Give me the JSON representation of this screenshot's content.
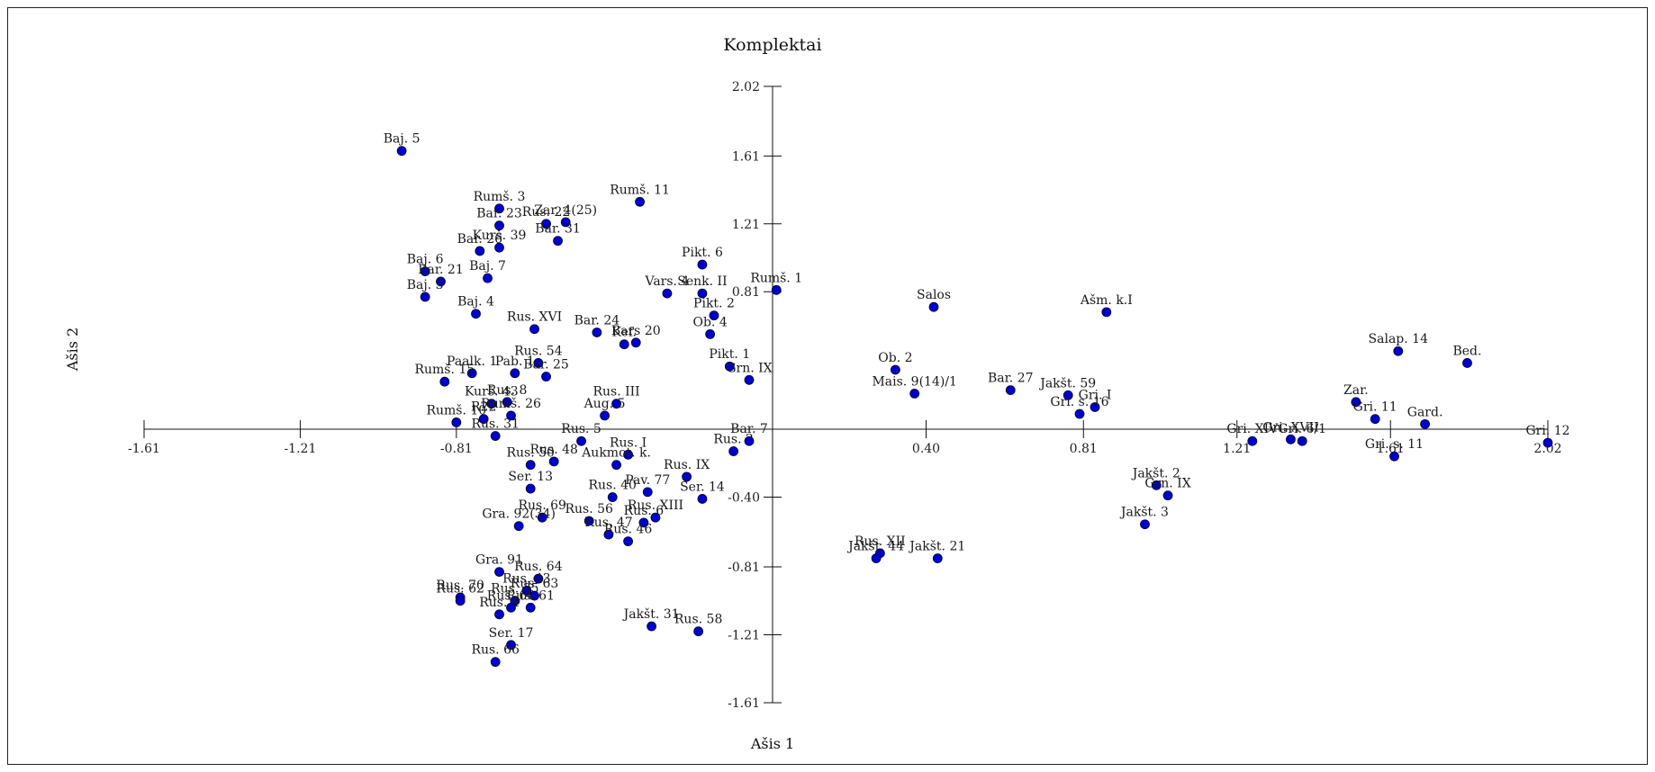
{
  "chart_data": {
    "type": "scatter",
    "title": "Komplektai",
    "xlabel": "Ašis 1",
    "ylabel": "Ašis 2",
    "xlim": [
      -1.61,
      2.02
    ],
    "ylim": [
      -1.61,
      2.02
    ],
    "xticks": [
      "-1.61",
      "-1.21",
      "-0.81",
      "0.40",
      "0.81",
      "1.21",
      "1.61",
      "2.02"
    ],
    "yticks": [
      "2.02",
      "1.61",
      "1.21",
      "0.81",
      "-0.40",
      "-0.81",
      "-1.21",
      "-1.61"
    ],
    "point_color": "#0000cc",
    "points": [
      {
        "label": "Baj. 5",
        "x": -0.95,
        "y": 1.64
      },
      {
        "label": "Rumš. 3",
        "x": -0.7,
        "y": 1.3
      },
      {
        "label": "Bar. 23",
        "x": -0.7,
        "y": 1.2
      },
      {
        "label": "Rus. 22",
        "x": -0.58,
        "y": 1.21
      },
      {
        "label": "Zar. 4(25)",
        "x": -0.53,
        "y": 1.22
      },
      {
        "label": "Bar. 31",
        "x": -0.55,
        "y": 1.11
      },
      {
        "label": "Rumš. 11",
        "x": -0.34,
        "y": 1.34
      },
      {
        "label": "Kurš. 39",
        "x": -0.7,
        "y": 1.07
      },
      {
        "label": "Bar. 26",
        "x": -0.75,
        "y": 1.05
      },
      {
        "label": "Baj. 6",
        "x": -0.89,
        "y": 0.93
      },
      {
        "label": "Bar. 21",
        "x": -0.85,
        "y": 0.87
      },
      {
        "label": "Baj. 7",
        "x": -0.73,
        "y": 0.89
      },
      {
        "label": "Baj. 3",
        "x": -0.89,
        "y": 0.78
      },
      {
        "label": "Baj. 4",
        "x": -0.76,
        "y": 0.68
      },
      {
        "label": "Pikt. 6",
        "x": -0.18,
        "y": 0.97
      },
      {
        "label": "Vars. 4",
        "x": -0.27,
        "y": 0.8
      },
      {
        "label": "Senk. II",
        "x": -0.18,
        "y": 0.8
      },
      {
        "label": "Rumš. 1",
        "x": 0.01,
        "y": 0.82
      },
      {
        "label": "Pikt. 2",
        "x": -0.15,
        "y": 0.67
      },
      {
        "label": "Ob. 4",
        "x": -0.16,
        "y": 0.56
      },
      {
        "label": "Rus. XVI",
        "x": -0.61,
        "y": 0.59
      },
      {
        "label": "Bar. 24",
        "x": -0.45,
        "y": 0.57
      },
      {
        "label": "Kef.",
        "x": -0.38,
        "y": 0.5
      },
      {
        "label": "Bars 20",
        "x": -0.35,
        "y": 0.51
      },
      {
        "label": "Pikt. 1",
        "x": -0.11,
        "y": 0.37
      },
      {
        "label": "Grn. IX",
        "x": -0.06,
        "y": 0.29
      },
      {
        "label": "Paalk. 1",
        "x": -0.77,
        "y": 0.33
      },
      {
        "label": "Pab. 1",
        "x": -0.66,
        "y": 0.33
      },
      {
        "label": "Rus. 54",
        "x": -0.6,
        "y": 0.39
      },
      {
        "label": "Bar. 25",
        "x": -0.58,
        "y": 0.31
      },
      {
        "label": "Rumš. 15",
        "x": -0.84,
        "y": 0.28
      },
      {
        "label": "Kurš. 43",
        "x": -0.72,
        "y": 0.15
      },
      {
        "label": "Rus. 8",
        "x": -0.68,
        "y": 0.16
      },
      {
        "label": "Rumš. 26",
        "x": -0.67,
        "y": 0.08
      },
      {
        "label": "Rumš. 10",
        "x": -0.81,
        "y": 0.04
      },
      {
        "label": "R22",
        "x": -0.74,
        "y": 0.06
      },
      {
        "label": "Rus. 31",
        "x": -0.71,
        "y": -0.04
      },
      {
        "label": "Rus. III",
        "x": -0.4,
        "y": 0.15
      },
      {
        "label": "Aug. 5",
        "x": -0.43,
        "y": 0.08
      },
      {
        "label": "Rus. 5",
        "x": -0.49,
        "y": -0.07
      },
      {
        "label": "Rus. 50",
        "x": -0.62,
        "y": -0.21
      },
      {
        "label": "Rus. 48",
        "x": -0.56,
        "y": -0.19
      },
      {
        "label": "Rus. I",
        "x": -0.37,
        "y": -0.15
      },
      {
        "label": "Aukmot. k.",
        "x": -0.4,
        "y": -0.21
      },
      {
        "label": "Rus. 2",
        "x": -0.1,
        "y": -0.13
      },
      {
        "label": "Bar. 7",
        "x": -0.06,
        "y": -0.07
      },
      {
        "label": "Rus. IX",
        "x": -0.22,
        "y": -0.28
      },
      {
        "label": "Ser. 13",
        "x": -0.62,
        "y": -0.35
      },
      {
        "label": "Pav. 77",
        "x": -0.32,
        "y": -0.37
      },
      {
        "label": "Ser. 14",
        "x": -0.18,
        "y": -0.41
      },
      {
        "label": "Rus. 40",
        "x": -0.41,
        "y": -0.4
      },
      {
        "label": "Rus. 69",
        "x": -0.59,
        "y": -0.52
      },
      {
        "label": "Gra. 92(34)",
        "x": -0.65,
        "y": -0.57
      },
      {
        "label": "Rus. 56",
        "x": -0.47,
        "y": -0.54
      },
      {
        "label": "Rus. XIII",
        "x": -0.3,
        "y": -0.52
      },
      {
        "label": "Rus. 6",
        "x": -0.33,
        "y": -0.55
      },
      {
        "label": "Rus. 47",
        "x": -0.42,
        "y": -0.62
      },
      {
        "label": "Rus. 46",
        "x": -0.37,
        "y": -0.66
      },
      {
        "label": "Gra. 91",
        "x": -0.7,
        "y": -0.84
      },
      {
        "label": "Rus. 64",
        "x": -0.6,
        "y": -0.88
      },
      {
        "label": "Rus. 70",
        "x": -0.8,
        "y": -0.99
      },
      {
        "label": "Rus. 62",
        "x": -0.8,
        "y": -1.01
      },
      {
        "label": "Rus. 43",
        "x": -0.63,
        "y": -0.95
      },
      {
        "label": "Rus. 35",
        "x": -0.66,
        "y": -1.01
      },
      {
        "label": "Rus. 63",
        "x": -0.61,
        "y": -0.98
      },
      {
        "label": "Rus. 60",
        "x": -0.67,
        "y": -1.05
      },
      {
        "label": "Rus. 4",
        "x": -0.7,
        "y": -1.09
      },
      {
        "label": "Rus. 61",
        "x": -0.62,
        "y": -1.05
      },
      {
        "label": "Ser. 17",
        "x": -0.67,
        "y": -1.27
      },
      {
        "label": "Rus. 66",
        "x": -0.71,
        "y": -1.37
      },
      {
        "label": "Jakšt. 31",
        "x": -0.31,
        "y": -1.16
      },
      {
        "label": "Rus. 58",
        "x": -0.19,
        "y": -1.19
      },
      {
        "label": "Salos",
        "x": 0.42,
        "y": 0.72
      },
      {
        "label": "Ob. 2",
        "x": 0.32,
        "y": 0.35
      },
      {
        "label": "Mais. 9(14)/1",
        "x": 0.37,
        "y": 0.21
      },
      {
        "label": "Bar. 27",
        "x": 0.62,
        "y": 0.23
      },
      {
        "label": "Ašm. k.I",
        "x": 0.87,
        "y": 0.69
      },
      {
        "label": "Jakšt. 59",
        "x": 0.77,
        "y": 0.2
      },
      {
        "label": "Gri. I",
        "x": 0.84,
        "y": 0.13
      },
      {
        "label": "Gri. s. 16",
        "x": 0.8,
        "y": 0.09
      },
      {
        "label": "Rus. XII",
        "x": 0.28,
        "y": -0.73
      },
      {
        "label": "Jakšt. 44",
        "x": 0.27,
        "y": -0.76
      },
      {
        "label": "Jakšt. 21",
        "x": 0.43,
        "y": -0.76
      },
      {
        "label": "Jakšt. 2",
        "x": 1.0,
        "y": -0.33
      },
      {
        "label": "Grn. IX",
        "x": 1.03,
        "y": -0.39
      },
      {
        "label": "Jakšt. 3",
        "x": 0.97,
        "y": -0.56
      },
      {
        "label": "Gri. XIV",
        "x": 1.25,
        "y": -0.07
      },
      {
        "label": "Gri. XVII",
        "x": 1.35,
        "y": -0.06
      },
      {
        "label": "Gri. 6/1",
        "x": 1.38,
        "y": -0.07
      },
      {
        "label": "Salap. 14",
        "x": 1.63,
        "y": 0.46
      },
      {
        "label": "Bed.",
        "x": 1.81,
        "y": 0.39
      },
      {
        "label": "Zar.",
        "x": 1.52,
        "y": 0.16
      },
      {
        "label": "Gri. 11",
        "x": 1.57,
        "y": 0.06
      },
      {
        "label": "Gard.",
        "x": 1.7,
        "y": 0.03
      },
      {
        "label": "Gri. s. 11",
        "x": 1.62,
        "y": -0.16
      },
      {
        "label": "Gri. 12",
        "x": 2.02,
        "y": -0.08
      }
    ]
  }
}
